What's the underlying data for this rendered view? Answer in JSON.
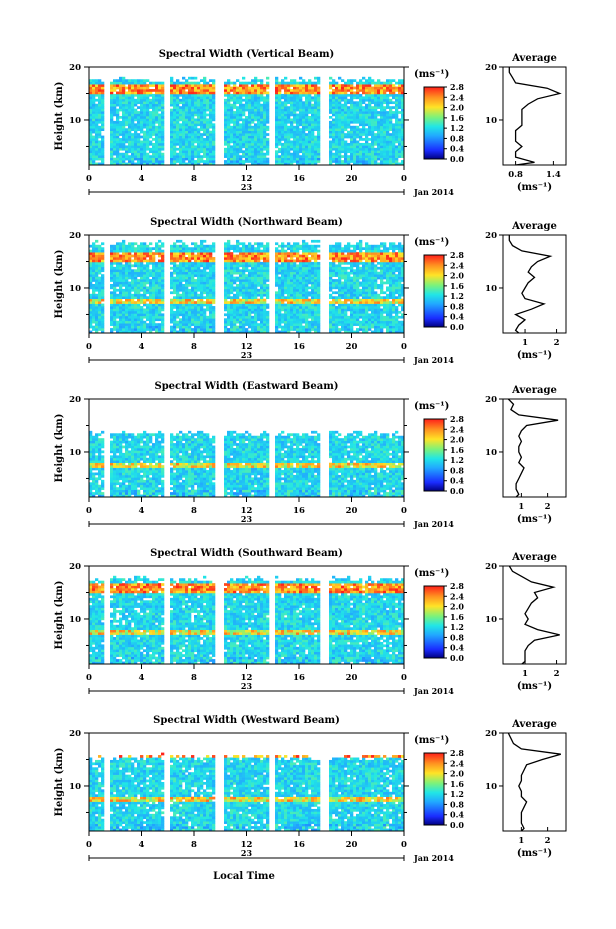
{
  "chart_data": {
    "type": "heatmap",
    "date_label": "Jan 2014",
    "date_day": "23",
    "x_label": "Local Time",
    "y_label": "Height (km)",
    "colorbar_unit": "(ms⁻¹)",
    "colorbar_ticks": [
      "2.8",
      "2.4",
      "2.0",
      "1.6",
      "1.2",
      "0.8",
      "0.4",
      "0.0"
    ],
    "colorbar_range": [
      0.0,
      2.8
    ],
    "avg_title": "Average",
    "avg_xlabel": "(ms⁻¹)",
    "x_ticks": [
      "0",
      "4",
      "8",
      "12",
      "16",
      "20",
      "0"
    ],
    "xlim": [
      0,
      24
    ],
    "ylim": [
      1.5,
      20
    ],
    "y_ticks": [
      "20",
      "10"
    ],
    "data_gaps_hours": [
      [
        1.1,
        1.6
      ],
      [
        5.7,
        6.2
      ],
      [
        9.7,
        10.2
      ],
      [
        13.7,
        14.2
      ],
      [
        17.7,
        18.2
      ]
    ],
    "panels": [
      {
        "title": "Spectral Width (Vertical Beam)",
        "avg_xticks": [
          "0.8",
          "1.4"
        ],
        "avg_xlim": [
          0.6,
          1.6
        ],
        "avg_profile": {
          "height": [
            1.5,
            2,
            3,
            4,
            5,
            6,
            7,
            8,
            9,
            10,
            11,
            12,
            13,
            14,
            15,
            16,
            17,
            18,
            19,
            20
          ],
          "value": [
            0.8,
            1.1,
            0.8,
            0.8,
            0.9,
            0.8,
            0.8,
            0.8,
            0.9,
            0.9,
            0.9,
            0.9,
            1.0,
            1.15,
            1.5,
            1.3,
            0.8,
            0.75,
            0.7,
            0.7
          ]
        }
      },
      {
        "title": "Spectral Width (Northward Beam)",
        "avg_xticks": [
          "1",
          "2"
        ],
        "avg_xlim": [
          0.3,
          2.3
        ],
        "avg_profile": {
          "height": [
            1.5,
            2,
            3,
            4,
            5,
            6,
            7,
            8,
            9,
            10,
            11,
            12,
            13,
            14,
            15,
            16,
            17,
            18,
            19,
            20
          ],
          "value": [
            0.8,
            0.7,
            0.8,
            1.0,
            0.7,
            1.2,
            1.6,
            1.0,
            0.9,
            1.0,
            1.1,
            1.3,
            1.1,
            1.2,
            1.4,
            1.8,
            0.9,
            0.6,
            0.5,
            0.5
          ]
        }
      },
      {
        "title": "Spectral Width (Eastward Beam)",
        "avg_xticks": [
          "1",
          "2"
        ],
        "avg_xlim": [
          0.3,
          2.7
        ],
        "avg_profile": {
          "height": [
            1.5,
            2,
            3,
            4,
            5,
            6,
            7,
            8,
            9,
            10,
            11,
            12,
            13,
            14,
            15,
            16,
            17,
            18,
            19,
            20
          ],
          "value": [
            0.8,
            0.9,
            0.8,
            0.8,
            0.9,
            1.0,
            1.1,
            0.9,
            1.0,
            0.9,
            0.9,
            1.0,
            0.9,
            1.0,
            1.2,
            2.4,
            0.9,
            0.6,
            0.7,
            0.5
          ]
        }
      },
      {
        "title": "Spectral Width (Southward Beam)",
        "avg_xticks": [
          "1",
          "2"
        ],
        "avg_xlim": [
          0.3,
          2.3
        ],
        "avg_profile": {
          "height": [
            1.5,
            2,
            3,
            4,
            5,
            6,
            7,
            8,
            9,
            10,
            11,
            12,
            13,
            14,
            15,
            16,
            17,
            18,
            19,
            20
          ],
          "value": [
            0.9,
            1.0,
            1.0,
            1.0,
            1.1,
            1.3,
            2.1,
            1.4,
            1.0,
            1.1,
            1.0,
            1.1,
            1.2,
            1.4,
            1.3,
            1.9,
            1.2,
            0.9,
            0.6,
            0.5
          ]
        }
      },
      {
        "title": "Spectral Width (Westward Beam)",
        "avg_xticks": [
          "1",
          "2"
        ],
        "avg_xlim": [
          0.3,
          2.7
        ],
        "avg_profile": {
          "height": [
            1.5,
            2,
            3,
            4,
            5,
            6,
            7,
            8,
            9,
            10,
            11,
            12,
            13,
            14,
            15,
            16,
            17,
            18,
            19,
            20
          ],
          "value": [
            1.0,
            1.1,
            1.0,
            1.0,
            1.0,
            1.1,
            1.2,
            1.0,
            1.0,
            0.9,
            1.0,
            1.0,
            1.1,
            1.2,
            1.8,
            2.5,
            1.0,
            0.7,
            0.6,
            0.5
          ]
        }
      }
    ]
  }
}
